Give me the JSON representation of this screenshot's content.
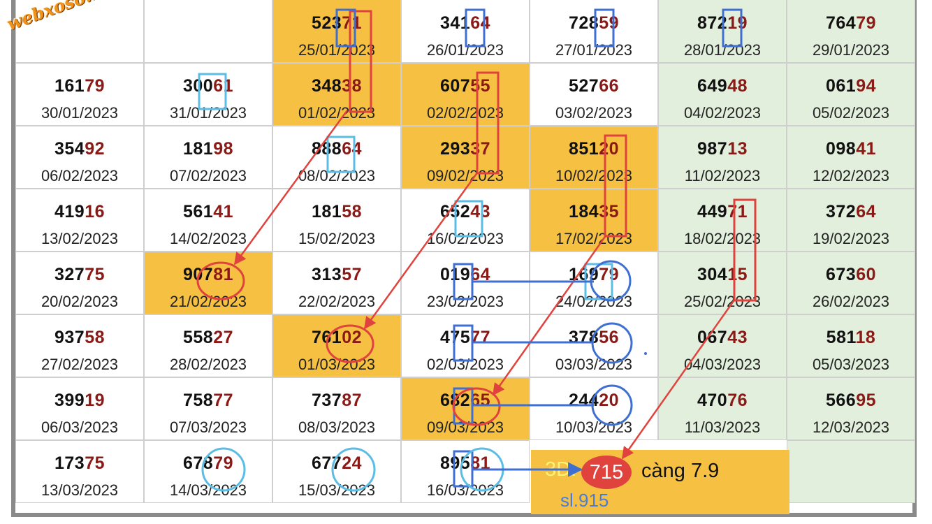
{
  "watermark": "webxoso.net",
  "rows": [
    [
      null,
      null,
      {
        "n": "52371",
        "d": "25/01/2023",
        "hl": true
      },
      {
        "n": "34164",
        "d": "26/01/2023"
      },
      {
        "n": "72859",
        "d": "27/01/2023"
      },
      {
        "n": "87219",
        "d": "28/01/2023"
      },
      {
        "n": "76479",
        "d": "29/01/2023"
      }
    ],
    [
      {
        "n": "16179",
        "d": "30/01/2023"
      },
      {
        "n": "30061",
        "d": "31/01/2023"
      },
      {
        "n": "34838",
        "d": "01/02/2023",
        "hl": true
      },
      {
        "n": "60755",
        "d": "02/02/2023",
        "hl": true
      },
      {
        "n": "52766",
        "d": "03/02/2023"
      },
      {
        "n": "64948",
        "d": "04/02/2023"
      },
      {
        "n": "06194",
        "d": "05/02/2023"
      }
    ],
    [
      {
        "n": "35492",
        "d": "06/02/2023"
      },
      {
        "n": "18198",
        "d": "07/02/2023"
      },
      {
        "n": "88864",
        "d": "08/02/2023"
      },
      {
        "n": "29337",
        "d": "09/02/2023",
        "hl": true
      },
      {
        "n": "85120",
        "d": "10/02/2023",
        "hl": true
      },
      {
        "n": "98713",
        "d": "11/02/2023"
      },
      {
        "n": "09841",
        "d": "12/02/2023"
      }
    ],
    [
      {
        "n": "41916",
        "d": "13/02/2023"
      },
      {
        "n": "56141",
        "d": "14/02/2023"
      },
      {
        "n": "18158",
        "d": "15/02/2023"
      },
      {
        "n": "65243",
        "d": "16/02/2023"
      },
      {
        "n": "18435",
        "d": "17/02/2023",
        "hl": true
      },
      {
        "n": "44971",
        "d": "18/02/2023",
        "hl": true
      },
      {
        "n": "37264",
        "d": "19/02/2023"
      }
    ],
    [
      {
        "n": "32775",
        "d": "20/02/2023"
      },
      {
        "n": "90781",
        "d": "21/02/2023",
        "hl": true
      },
      {
        "n": "31357",
        "d": "22/02/2023"
      },
      {
        "n": "01964",
        "d": "23/02/2023"
      },
      {
        "n": "16979",
        "d": "24/02/2023"
      },
      {
        "n": "30415",
        "d": "25/02/2023",
        "hl": true
      },
      {
        "n": "67360",
        "d": "26/02/2023"
      }
    ],
    [
      {
        "n": "93758",
        "d": "27/02/2023"
      },
      {
        "n": "55827",
        "d": "28/02/2023"
      },
      {
        "n": "76102",
        "d": "01/03/2023",
        "hl": true
      },
      {
        "n": "47577",
        "d": "02/03/2023"
      },
      {
        "n": "37856",
        "d": "03/03/2023"
      },
      {
        "n": "06743",
        "d": "04/03/2023"
      },
      {
        "n": "58118",
        "d": "05/03/2023"
      }
    ],
    [
      {
        "n": "39919",
        "d": "06/03/2023"
      },
      {
        "n": "75877",
        "d": "07/03/2023"
      },
      {
        "n": "73787",
        "d": "08/03/2023"
      },
      {
        "n": "68265",
        "d": "09/03/2023",
        "hl": true
      },
      {
        "n": "24420",
        "d": "10/03/2023"
      },
      {
        "n": "47076",
        "d": "11/03/2023"
      },
      {
        "n": "56695",
        "d": "12/03/2023"
      }
    ],
    [
      {
        "n": "17375",
        "d": "13/03/2023"
      },
      {
        "n": "67879",
        "d": "14/03/2023"
      },
      {
        "n": "67724",
        "d": "15/03/2023"
      },
      {
        "n": "89581",
        "d": "16/03/2023"
      },
      null,
      null,
      null
    ]
  ],
  "prediction": {
    "label": "3D:",
    "value": "715",
    "cang": "càng 7.9",
    "sl": "sl.915"
  },
  "colors": {
    "highlight": "#f6c142",
    "weekend": "#e2efdc",
    "tail_digits": "#8b1a16",
    "red_marker": "#e0433d",
    "blue_marker": "#3f6fd1",
    "cyan_marker": "#5bbde6"
  }
}
